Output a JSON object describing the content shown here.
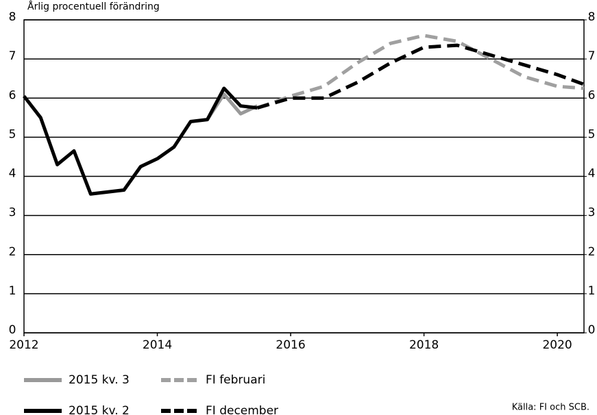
{
  "chart_data": {
    "type": "line",
    "title": "Årlig procentuell förändring",
    "source": "Källa: FI och SCB.",
    "xlim": [
      2012,
      2020.4
    ],
    "xticks": [
      2012,
      2014,
      2016,
      2018,
      2020
    ],
    "ylim": [
      0,
      8
    ],
    "yticks": [
      0,
      1,
      2,
      3,
      4,
      5,
      6,
      7,
      8
    ],
    "y2lim": [
      0,
      8
    ],
    "y2ticks": [
      0,
      1,
      2,
      3,
      4,
      5,
      6,
      7,
      8
    ],
    "grid": true,
    "series": [
      {
        "name": "2015 kv. 3",
        "color": "#999999",
        "style": "solid",
        "x": [
          2014.75,
          2015,
          2015.25,
          2015.5
        ],
        "values": [
          5.45,
          6.1,
          5.6,
          5.8
        ]
      },
      {
        "name": "2015 kv. 2",
        "color": "#000000",
        "style": "solid",
        "x": [
          2012,
          2012.25,
          2012.5,
          2012.75,
          2013,
          2013.25,
          2013.5,
          2013.75,
          2014,
          2014.25,
          2014.5,
          2014.75,
          2015,
          2015.25,
          2015.5
        ],
        "values": [
          6.05,
          5.5,
          4.3,
          4.65,
          3.55,
          3.6,
          3.65,
          4.25,
          4.45,
          4.75,
          5.4,
          5.45,
          6.25,
          5.8,
          5.75
        ]
      },
      {
        "name": "FI februari",
        "color": "#a0a0a0",
        "style": "dashed",
        "x": [
          2015.5,
          2016,
          2016.5,
          2017,
          2017.5,
          2018,
          2018.5,
          2019,
          2019.5,
          2020,
          2020.4
        ],
        "values": [
          5.75,
          6.05,
          6.3,
          6.9,
          7.4,
          7.6,
          7.45,
          7.0,
          6.55,
          6.3,
          6.25
        ]
      },
      {
        "name": "FI december",
        "color": "#000000",
        "style": "dashed",
        "x": [
          2015.5,
          2016,
          2016.5,
          2017,
          2017.5,
          2018,
          2018.5,
          2019,
          2019.5,
          2020,
          2020.4
        ],
        "values": [
          5.75,
          6.0,
          6.0,
          6.4,
          6.9,
          7.3,
          7.35,
          7.1,
          6.85,
          6.6,
          6.35
        ]
      }
    ]
  }
}
